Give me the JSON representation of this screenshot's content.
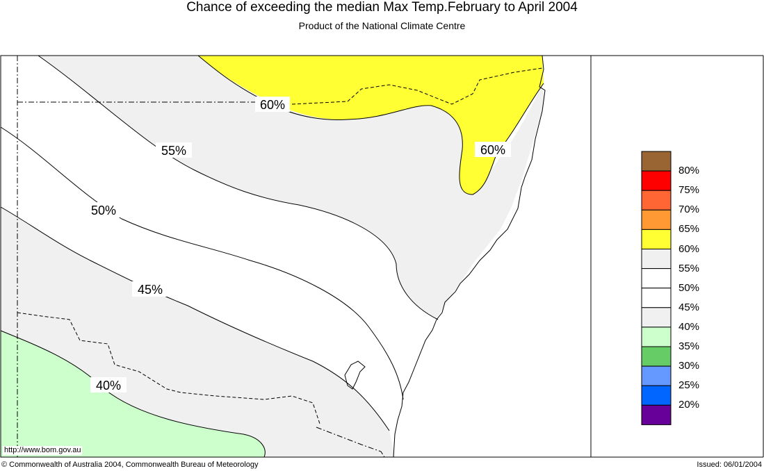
{
  "title": "Chance of exceeding the median Max Temp.February to April 2004",
  "subtitle": "Product of the National Climate Centre",
  "url": "http://www.bom.gov.au",
  "copyright": "© Commonwealth of Australia 2004, Commonwealth Bureau of Meteorology",
  "issued": "Issued: 06/01/2004",
  "contour_labels": [
    "60%",
    "60%",
    "55%",
    "50%",
    "45%",
    "40%"
  ],
  "legend": [
    {
      "label": "80%",
      "color": "#996633"
    },
    {
      "label": "75%",
      "color": "#ff0000"
    },
    {
      "label": "70%",
      "color": "#ff6633"
    },
    {
      "label": "65%",
      "color": "#ff9933"
    },
    {
      "label": "60%",
      "color": "#ffff33"
    },
    {
      "label": "55%",
      "color": "#f0f0f0"
    },
    {
      "label": "50%",
      "color": "#ffffff"
    },
    {
      "label": "45%",
      "color": "#ffffff"
    },
    {
      "label": "40%",
      "color": "#f0f0f0"
    },
    {
      "label": "35%",
      "color": "#ccffcc"
    },
    {
      "label": "30%",
      "color": "#66cc66"
    },
    {
      "label": "25%",
      "color": "#6699ff"
    },
    {
      "label": "20%",
      "color": "#0066ff"
    },
    {
      "label": "",
      "color": "#660099"
    }
  ]
}
